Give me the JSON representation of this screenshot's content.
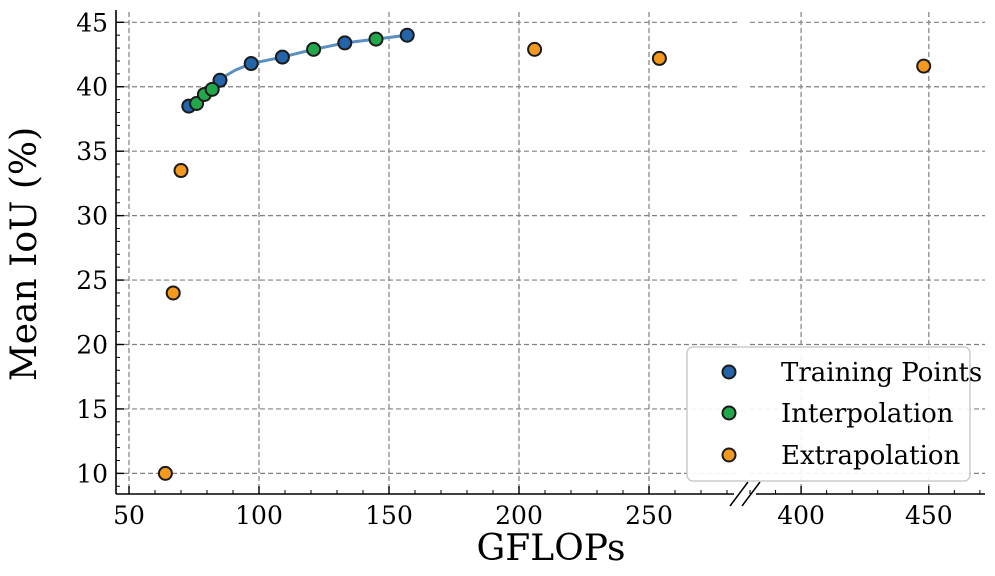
{
  "chart_data": {
    "type": "scatter",
    "title": "",
    "xlabel": "GFLOPs",
    "ylabel": "Mean IoU (%)",
    "x_ticks_left": [
      50,
      100,
      150,
      200,
      250
    ],
    "x_ticks_right": [
      400,
      450
    ],
    "x_tick_labels_left": [
      "50",
      "100",
      "150",
      "200",
      "250"
    ],
    "x_tick_labels_right": [
      "400",
      "450"
    ],
    "xlim_left": [
      45,
      285
    ],
    "xlim_right": [
      380,
      472
    ],
    "axis_break": true,
    "y_ticks": [
      10,
      15,
      20,
      25,
      30,
      35,
      40,
      45
    ],
    "y_tick_labels": [
      "10",
      "15",
      "20",
      "25",
      "30",
      "35",
      "40",
      "45"
    ],
    "ylim": [
      8.4,
      45.8
    ],
    "grid": true,
    "legend_position": "bottom-right",
    "series": [
      {
        "name": "Training Points",
        "color": "#2464a8",
        "x": [
          73,
          85,
          97,
          109,
          133,
          157
        ],
        "y": [
          38.5,
          40.5,
          41.8,
          42.3,
          43.4,
          44.0
        ]
      },
      {
        "name": "Interpolation",
        "color": "#22a84a",
        "x": [
          76,
          79,
          82,
          121,
          145
        ],
        "y": [
          38.7,
          39.4,
          39.8,
          42.9,
          43.7
        ]
      },
      {
        "name": "Extrapolation",
        "color": "#f39a1e",
        "x": [
          64,
          67,
          70,
          206,
          254,
          448
        ],
        "y": [
          10.0,
          24.0,
          33.5,
          42.9,
          42.2,
          41.6
        ]
      }
    ],
    "fit_curve": {
      "color": "#5a8fc0",
      "x": [
        73,
        79,
        85,
        91,
        97,
        103,
        109,
        115,
        121,
        127,
        133,
        139,
        145,
        151,
        157
      ],
      "y": [
        38.5,
        39.6,
        40.6,
        41.3,
        41.8,
        42.05,
        42.3,
        42.6,
        42.9,
        43.15,
        43.4,
        43.55,
        43.7,
        43.85,
        44.0
      ]
    }
  }
}
